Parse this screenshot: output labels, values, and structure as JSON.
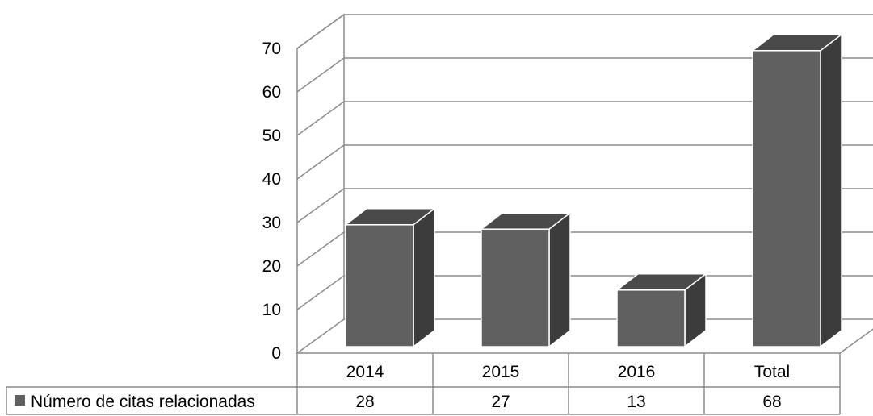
{
  "chart_data": {
    "type": "bar",
    "style": "3d-column-with-data-table",
    "categories": [
      "2014",
      "2015",
      "2016",
      "Total"
    ],
    "series": [
      {
        "name": "Número de citas relacionadas",
        "values": [
          28,
          27,
          13,
          68
        ],
        "color": "#606060"
      }
    ],
    "ylim": [
      0,
      70
    ],
    "yticks": [
      "0",
      "10",
      "20",
      "30",
      "40",
      "50",
      "60",
      "70"
    ],
    "grid": true,
    "legend": "data-table-left",
    "colors": {
      "bar_front": "#606060",
      "bar_top": "#4a4a4a",
      "bar_side": "#3c3c3c",
      "grid": "#8c8c8c",
      "border": "#8c8c8c"
    }
  }
}
